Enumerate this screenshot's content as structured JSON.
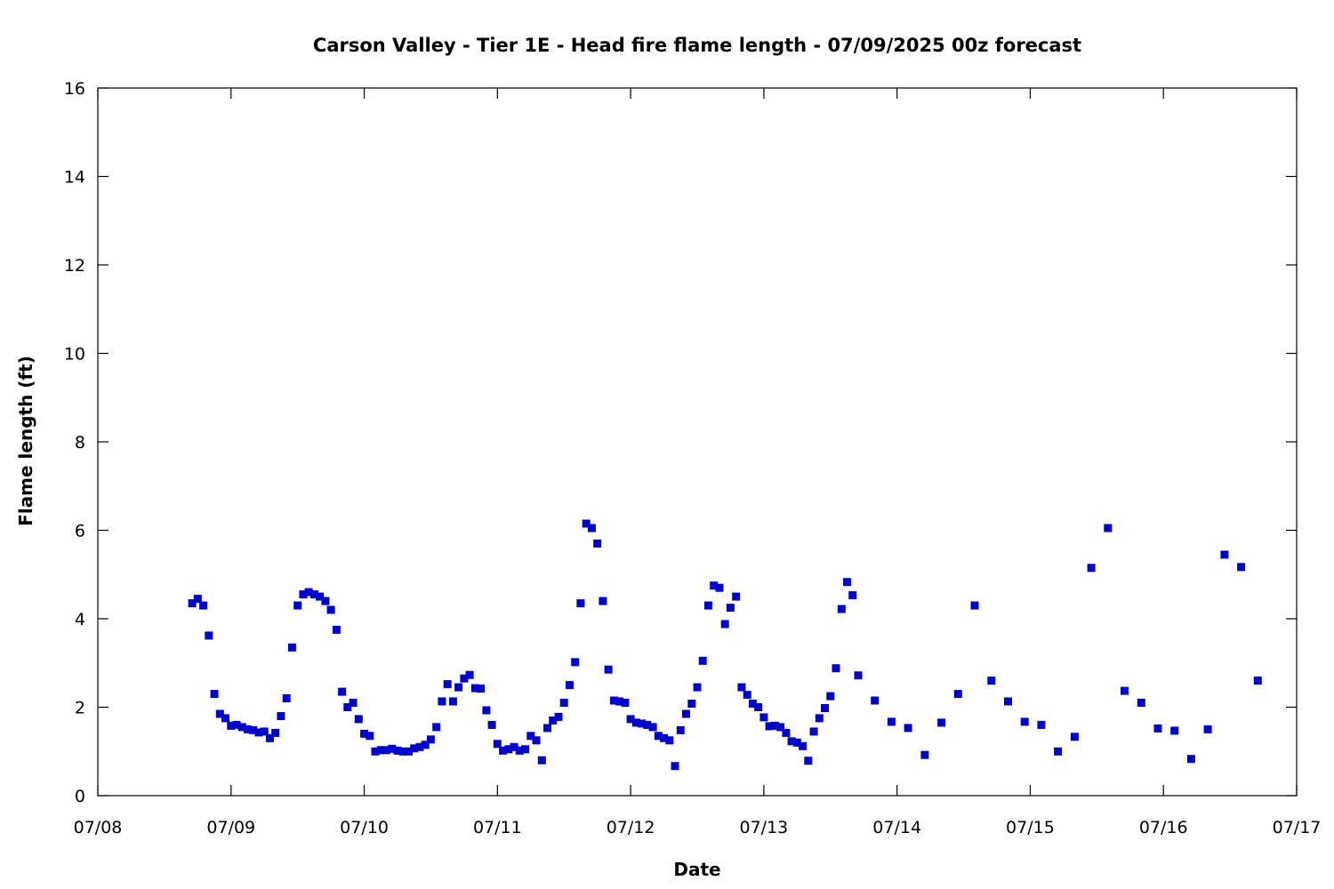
{
  "chart_data": {
    "type": "scatter",
    "title": "Carson Valley - Tier 1E - Head fire flame length - 07/09/2025 00z forecast",
    "xlabel": "Date",
    "ylabel": "Flame length (ft)",
    "x_unit": "day",
    "xlim": [
      "07/08 00:00",
      "07/17 00:00"
    ],
    "ylim": [
      0,
      16
    ],
    "x_ticks": [
      "07/08",
      "07/09",
      "07/10",
      "07/11",
      "07/12",
      "07/13",
      "07/14",
      "07/15",
      "07/16",
      "07/17"
    ],
    "y_ticks": [
      "0",
      "2",
      "4",
      "6",
      "8",
      "10",
      "12",
      "14",
      "16"
    ],
    "grid": false,
    "legend": "none",
    "marker": "square",
    "color": "#0000cc",
    "series": [
      {
        "x": [
          "07/08 17:00",
          "07/08 18:00",
          "07/08 19:00",
          "07/08 20:00",
          "07/08 21:00",
          "07/08 22:00",
          "07/08 23:00",
          "07/09 00:00",
          "07/09 01:00",
          "07/09 02:00",
          "07/09 03:00",
          "07/09 04:00",
          "07/09 05:00",
          "07/09 06:00",
          "07/09 07:00",
          "07/09 08:00",
          "07/09 09:00",
          "07/09 10:00",
          "07/09 11:00",
          "07/09 12:00",
          "07/09 13:00",
          "07/09 14:00",
          "07/09 15:00",
          "07/09 16:00",
          "07/09 17:00",
          "07/09 18:00",
          "07/09 19:00",
          "07/09 20:00",
          "07/09 21:00",
          "07/09 22:00",
          "07/09 23:00",
          "07/10 00:00",
          "07/10 01:00",
          "07/10 02:00",
          "07/10 03:00",
          "07/10 04:00",
          "07/10 05:00",
          "07/10 06:00",
          "07/10 07:00",
          "07/10 08:00",
          "07/10 09:00",
          "07/10 10:00",
          "07/10 11:00",
          "07/10 12:00",
          "07/10 13:00",
          "07/10 14:00",
          "07/10 15:00",
          "07/10 16:00",
          "07/10 17:00",
          "07/10 18:00",
          "07/10 19:00",
          "07/10 20:00",
          "07/10 21:00",
          "07/10 22:00",
          "07/10 23:00",
          "07/11 00:00",
          "07/11 01:00",
          "07/11 02:00",
          "07/11 03:00",
          "07/11 04:00",
          "07/11 05:00",
          "07/11 06:00",
          "07/11 07:00",
          "07/11 08:00",
          "07/11 09:00",
          "07/11 10:00",
          "07/11 11:00",
          "07/11 12:00",
          "07/11 13:00",
          "07/11 14:00",
          "07/11 15:00",
          "07/11 16:00",
          "07/11 17:00",
          "07/11 18:00",
          "07/11 19:00",
          "07/11 20:00",
          "07/11 21:00",
          "07/11 22:00",
          "07/11 23:00",
          "07/12 00:00",
          "07/12 01:00",
          "07/12 02:00",
          "07/12 03:00",
          "07/12 04:00",
          "07/12 05:00",
          "07/12 06:00",
          "07/12 07:00",
          "07/12 08:00",
          "07/12 09:00",
          "07/12 10:00",
          "07/12 11:00",
          "07/12 12:00",
          "07/12 13:00",
          "07/12 14:00",
          "07/12 15:00",
          "07/12 16:00",
          "07/12 17:00",
          "07/12 18:00",
          "07/12 19:00",
          "07/12 20:00",
          "07/12 21:00",
          "07/12 22:00",
          "07/12 23:00",
          "07/13 00:00",
          "07/13 01:00",
          "07/13 02:00",
          "07/13 03:00",
          "07/13 04:00",
          "07/13 05:00",
          "07/13 06:00",
          "07/13 07:00",
          "07/13 08:00",
          "07/13 09:00",
          "07/13 10:00",
          "07/13 11:00",
          "07/13 12:00",
          "07/13 13:00",
          "07/13 14:00",
          "07/13 15:00",
          "07/13 16:00",
          "07/13 17:00",
          "07/13 20:00",
          "07/13 23:00",
          "07/14 02:00",
          "07/14 05:00",
          "07/14 08:00",
          "07/14 11:00",
          "07/14 14:00",
          "07/14 17:00",
          "07/14 20:00",
          "07/14 23:00",
          "07/15 02:00",
          "07/15 05:00",
          "07/15 08:00",
          "07/15 11:00",
          "07/15 14:00",
          "07/15 17:00",
          "07/15 20:00",
          "07/15 23:00",
          "07/16 02:00",
          "07/16 05:00",
          "07/16 08:00",
          "07/16 11:00",
          "07/16 14:00",
          "07/16 17:00"
        ],
        "y": [
          4.35,
          4.45,
          4.3,
          3.62,
          2.3,
          1.85,
          1.75,
          1.58,
          1.6,
          1.55,
          1.5,
          1.48,
          1.43,
          1.45,
          1.3,
          1.42,
          1.8,
          2.2,
          3.35,
          4.3,
          4.55,
          4.6,
          4.55,
          4.5,
          4.4,
          4.2,
          3.75,
          2.35,
          2.0,
          2.1,
          1.73,
          1.4,
          1.35,
          1.0,
          1.03,
          1.03,
          1.06,
          1.02,
          1.0,
          1.0,
          1.07,
          1.1,
          1.15,
          1.27,
          1.55,
          2.13,
          2.52,
          2.13,
          2.45,
          2.65,
          2.73,
          2.43,
          2.42,
          1.93,
          1.6,
          1.17,
          1.02,
          1.05,
          1.1,
          1.02,
          1.05,
          1.35,
          1.25,
          0.8,
          1.53,
          1.7,
          1.78,
          2.1,
          2.5,
          3.02,
          4.35,
          6.15,
          6.05,
          5.7,
          4.4,
          2.85,
          2.15,
          2.13,
          2.1,
          1.73,
          1.65,
          1.63,
          1.6,
          1.55,
          1.35,
          1.3,
          1.25,
          0.67,
          1.48,
          1.85,
          2.08,
          2.45,
          3.05,
          4.3,
          4.75,
          4.7,
          3.88,
          4.25,
          4.5,
          2.45,
          2.28,
          2.08,
          2.0,
          1.77,
          1.57,
          1.58,
          1.55,
          1.42,
          1.23,
          1.2,
          1.12,
          0.79,
          1.45,
          1.75,
          1.98,
          2.25,
          2.88,
          4.22,
          4.83,
          4.53,
          2.72,
          2.15,
          1.67,
          1.53,
          0.92,
          1.65,
          2.3,
          4.3,
          2.6,
          2.13,
          1.67,
          1.6,
          1.0,
          1.33,
          5.15,
          6.05,
          2.37,
          2.1,
          1.52,
          1.47,
          0.83,
          1.5,
          5.45,
          5.17,
          2.6
        ]
      }
    ]
  }
}
